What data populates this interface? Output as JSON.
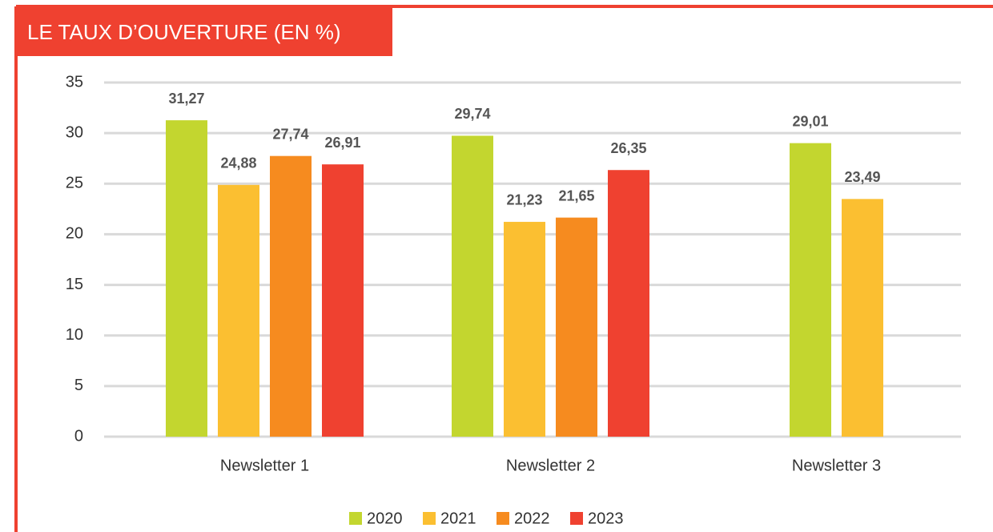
{
  "chart_data": {
    "type": "bar",
    "title": "LE TAUX D’OUVERTURE (EN %)",
    "categories": [
      "Newsletter 1",
      "Newsletter 2",
      "Newsletter 3"
    ],
    "series": [
      {
        "name": "2020",
        "color": "#c3d62f",
        "values": [
          31.27,
          29.74,
          29.01
        ],
        "value_labels": [
          "31,27",
          "29,74",
          "29,01"
        ]
      },
      {
        "name": "2021",
        "color": "#fbbf31",
        "values": [
          24.88,
          21.23,
          23.49
        ],
        "value_labels": [
          "24,88",
          "21,23",
          "23,49"
        ]
      },
      {
        "name": "2022",
        "color": "#f68b1f",
        "values": [
          27.74,
          21.65,
          null
        ],
        "value_labels": [
          "27,74",
          "21,65",
          null
        ]
      },
      {
        "name": "2023",
        "color": "#ef4130",
        "values": [
          26.91,
          26.35,
          null
        ],
        "value_labels": [
          "26,91",
          "26,35",
          null
        ]
      }
    ],
    "ylim": [
      0,
      35
    ],
    "yticks": [
      0,
      5,
      10,
      15,
      20,
      25,
      30,
      35
    ],
    "grid": true,
    "legend": "bottom"
  }
}
